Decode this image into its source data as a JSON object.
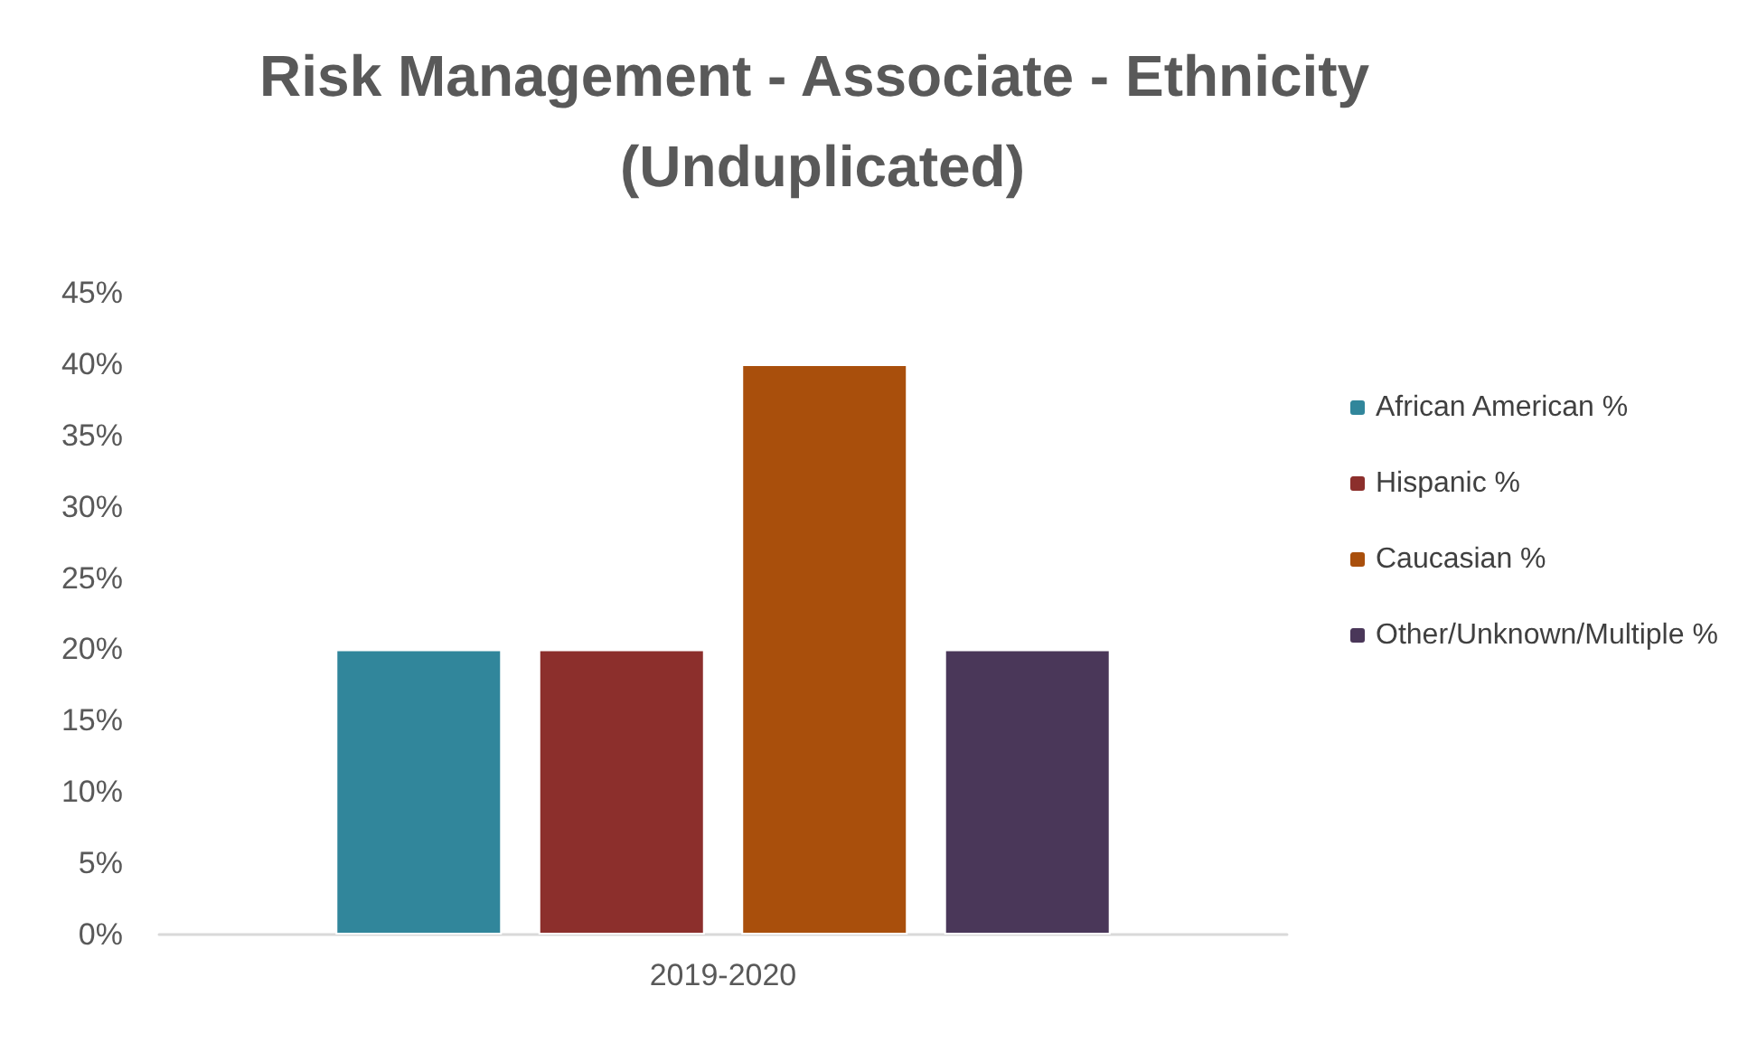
{
  "chart_data": {
    "type": "bar",
    "title": "Risk Management - Associate - Ethnicity (Unduplicated)",
    "categories": [
      "2019-2020"
    ],
    "series": [
      {
        "name": "African American %",
        "color": "#31869b",
        "values": [
          20
        ]
      },
      {
        "name": "Hispanic %",
        "color": "#8c2f2c",
        "values": [
          20
        ]
      },
      {
        "name": "Caucasian %",
        "color": "#a94f0c",
        "values": [
          40
        ]
      },
      {
        "name": "Other/Unknown/Multiple %",
        "color": "#4a3759",
        "values": [
          20
        ]
      }
    ],
    "ylim": [
      0,
      45
    ],
    "yticks": [
      {
        "value": 0,
        "label": "0%"
      },
      {
        "value": 5,
        "label": "5%"
      },
      {
        "value": 10,
        "label": "10%"
      },
      {
        "value": 15,
        "label": "15%"
      },
      {
        "value": 20,
        "label": "20%"
      },
      {
        "value": 25,
        "label": "25%"
      },
      {
        "value": 30,
        "label": "30%"
      },
      {
        "value": 35,
        "label": "35%"
      },
      {
        "value": 40,
        "label": "40%"
      },
      {
        "value": 45,
        "label": "45%"
      }
    ],
    "grid": false,
    "legend": "right"
  }
}
